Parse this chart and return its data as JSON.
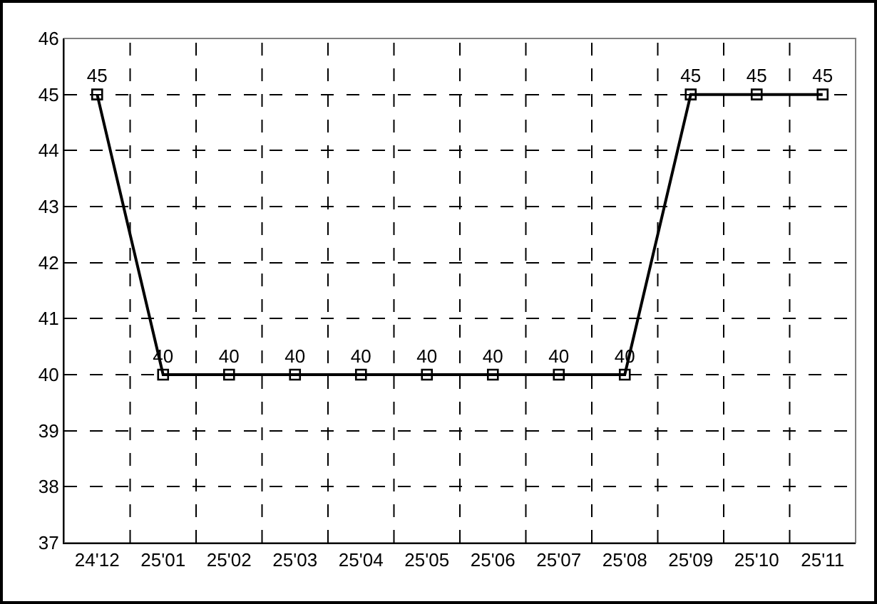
{
  "chart_data": {
    "type": "line",
    "categories": [
      "24'12",
      "25'01",
      "25'02",
      "25'03",
      "25'04",
      "25'05",
      "25'06",
      "25'07",
      "25'08",
      "25'09",
      "25'10",
      "25'11"
    ],
    "values": [
      45,
      40,
      40,
      40,
      40,
      40,
      40,
      40,
      40,
      45,
      45,
      45
    ],
    "color": "#000000",
    "ylim": [
      37,
      46
    ],
    "yticks": [
      37,
      38,
      39,
      40,
      41,
      42,
      43,
      44,
      45,
      46
    ],
    "grid": true,
    "marker": "square",
    "line_style": "solid",
    "data_labels": true,
    "legend": false
  }
}
